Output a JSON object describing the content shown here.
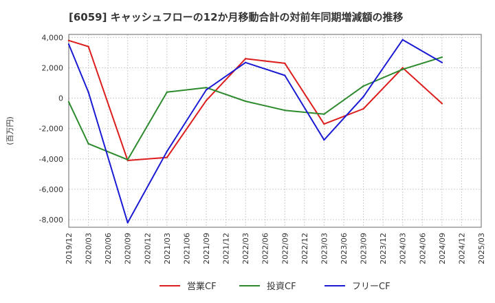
{
  "chart_data": {
    "type": "line",
    "title": "[6059]  キャッシュフローの12か月移動合計の対前年同期増減額の推移",
    "ylabel": "(百万円)",
    "xlabel": "",
    "ylim": [
      -8500,
      4200
    ],
    "yticks": [
      4000,
      2000,
      0,
      -2000,
      -4000,
      -6000,
      -8000
    ],
    "ytick_labels": [
      "4,000",
      "2,000",
      "0",
      "-2,000",
      "-4,000",
      "-6,000",
      "-8,000"
    ],
    "categories": [
      "2019/12",
      "2020/03",
      "2020/06",
      "2020/09",
      "2020/12",
      "2021/03",
      "2021/06",
      "2021/09",
      "2021/12",
      "2022/03",
      "2022/06",
      "2022/09",
      "2022/12",
      "2023/03",
      "2023/06",
      "2023/09",
      "2023/12",
      "2024/03",
      "2024/06",
      "2024/09",
      "2024/12",
      "2025/03"
    ],
    "grid": true,
    "legend_position": "bottom",
    "series": [
      {
        "name": "営業CF",
        "color": "#dd1c1c",
        "values": [
          3800,
          3400,
          null,
          -4100,
          null,
          -3900,
          null,
          -150,
          null,
          2600,
          null,
          2300,
          null,
          -1700,
          null,
          -700,
          null,
          2000,
          null,
          -350,
          null,
          null
        ]
      },
      {
        "name": "投資CF",
        "color": "#2c8a2c",
        "values": [
          -250,
          -3000,
          null,
          -4050,
          null,
          400,
          null,
          700,
          null,
          -200,
          null,
          -800,
          null,
          -1050,
          null,
          800,
          null,
          1900,
          null,
          2700,
          null,
          null
        ]
      },
      {
        "name": "フリーCF",
        "color": "#1a1ad4",
        "values": [
          3550,
          400,
          null,
          -8200,
          null,
          -3500,
          null,
          550,
          null,
          2350,
          null,
          1500,
          null,
          -2750,
          null,
          100,
          null,
          3850,
          null,
          2350,
          null,
          null
        ]
      }
    ]
  }
}
